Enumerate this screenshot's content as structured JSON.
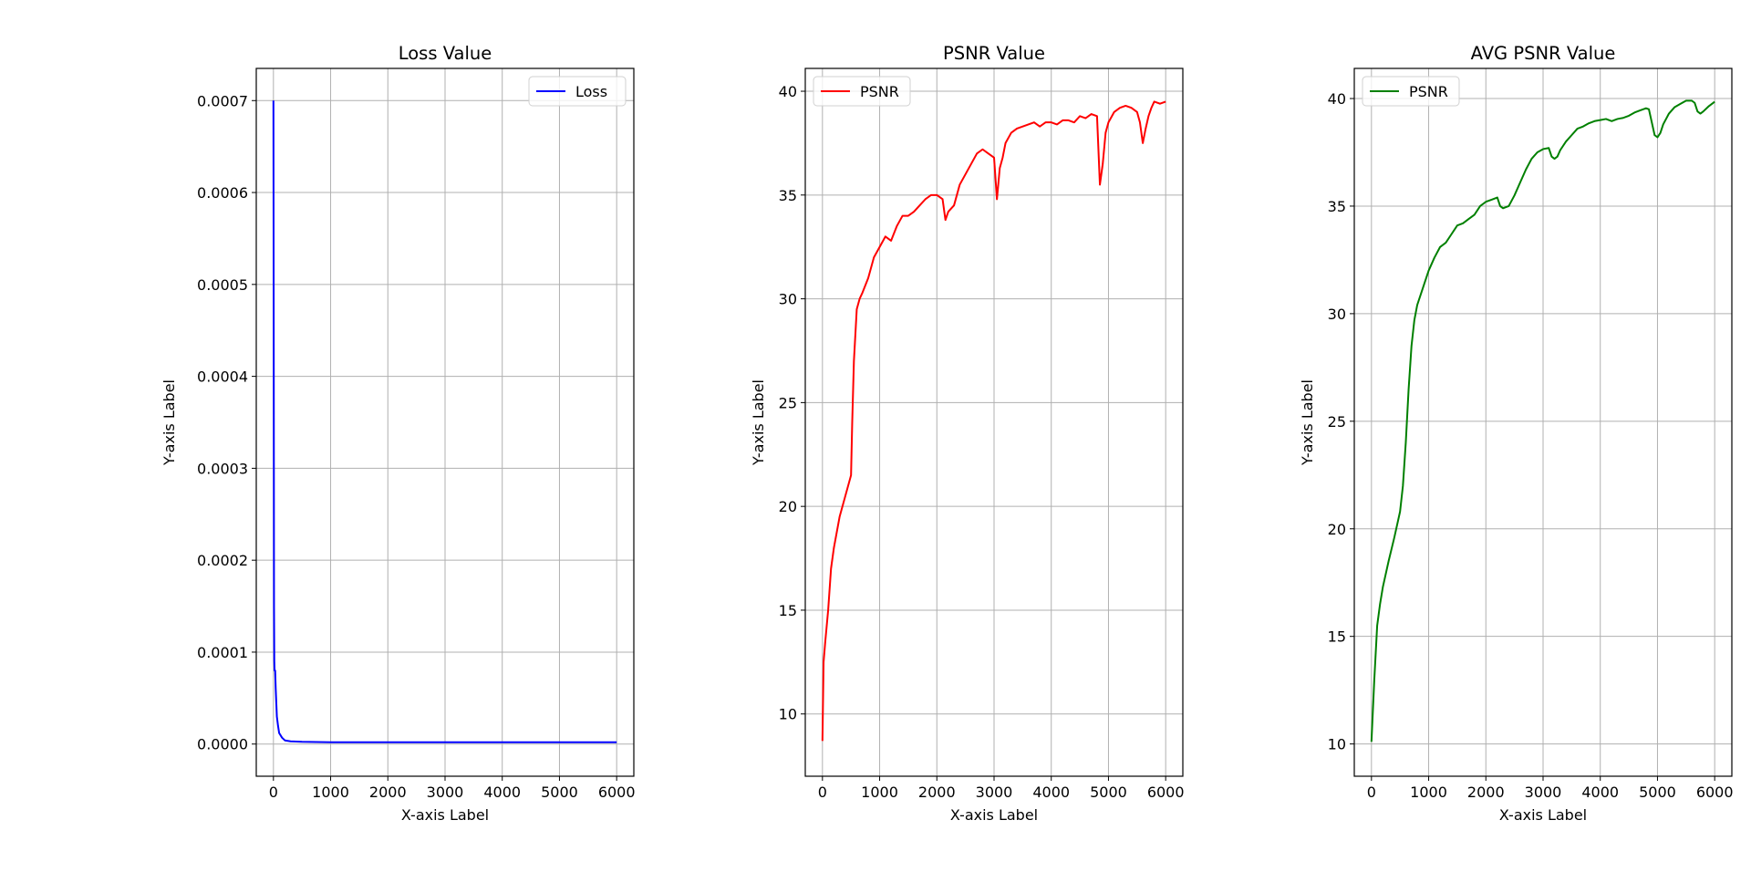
{
  "chart_data": [
    {
      "type": "line",
      "title": "Loss Value",
      "xlabel": "X-axis Label",
      "ylabel": "Y-axis Label",
      "xlim": [
        -300,
        6300
      ],
      "ylim": [
        -3.5e-05,
        0.000735
      ],
      "xticks": [
        0,
        1000,
        2000,
        3000,
        4000,
        5000,
        6000
      ],
      "xtick_labels": [
        "0",
        "1000",
        "2000",
        "3000",
        "4000",
        "5000",
        "6000"
      ],
      "yticks": [
        0,
        0.0001,
        0.0002,
        0.0003,
        0.0004,
        0.0005,
        0.0006,
        0.0007
      ],
      "ytick_labels": [
        "0.0000",
        "0.0001",
        "0.0002",
        "0.0003",
        "0.0004",
        "0.0005",
        "0.0006",
        "0.0007"
      ],
      "grid": true,
      "legend_position": "top-right",
      "series": [
        {
          "name": "Loss",
          "color": "#0000ff",
          "x": [
            0,
            5,
            10,
            15,
            20,
            30,
            40,
            60,
            80,
            100,
            150,
            200,
            300,
            500,
            1000,
            2000,
            3000,
            4000,
            5000,
            6000
          ],
          "y": [
            0.0007,
            0.00045,
            0.00015,
            9e-05,
            8e-05,
            8e-05,
            6e-05,
            3e-05,
            2e-05,
            1.2e-05,
            7e-06,
            4e-06,
            3e-06,
            2.5e-06,
            2e-06,
            2e-06,
            2e-06,
            2e-06,
            2e-06,
            2e-06
          ]
        }
      ]
    },
    {
      "type": "line",
      "title": "PSNR Value",
      "xlabel": "X-axis Label",
      "ylabel": "Y-axis Label",
      "xlim": [
        -300,
        6300
      ],
      "ylim": [
        7,
        41.1
      ],
      "xticks": [
        0,
        1000,
        2000,
        3000,
        4000,
        5000,
        6000
      ],
      "xtick_labels": [
        "0",
        "1000",
        "2000",
        "3000",
        "4000",
        "5000",
        "6000"
      ],
      "yticks": [
        10,
        15,
        20,
        25,
        30,
        35,
        40
      ],
      "ytick_labels": [
        "10",
        "15",
        "20",
        "25",
        "30",
        "35",
        "40"
      ],
      "grid": true,
      "legend_position": "top-left",
      "series": [
        {
          "name": "PSNR",
          "color": "#ff0000",
          "x": [
            0,
            20,
            50,
            100,
            150,
            200,
            300,
            400,
            450,
            500,
            520,
            550,
            580,
            600,
            650,
            700,
            800,
            900,
            1000,
            1100,
            1200,
            1300,
            1400,
            1500,
            1600,
            1700,
            1800,
            1900,
            2000,
            2100,
            2150,
            2200,
            2300,
            2400,
            2500,
            2600,
            2700,
            2800,
            2900,
            3000,
            3050,
            3100,
            3150,
            3200,
            3300,
            3400,
            3500,
            3600,
            3700,
            3800,
            3900,
            4000,
            4100,
            4200,
            4300,
            4400,
            4500,
            4600,
            4700,
            4800,
            4850,
            4900,
            4950,
            5000,
            5100,
            5200,
            5300,
            5400,
            5500,
            5550,
            5600,
            5650,
            5700,
            5750,
            5800,
            5900,
            6000
          ],
          "y": [
            8.7,
            12.5,
            13.5,
            15,
            17,
            18,
            19.5,
            20.5,
            21,
            21.5,
            24,
            27,
            28.5,
            29.5,
            30,
            30.3,
            31,
            32,
            32.5,
            33,
            32.8,
            33.5,
            34,
            34,
            34.2,
            34.5,
            34.8,
            35,
            35,
            34.8,
            33.8,
            34.2,
            34.5,
            35.5,
            36,
            36.5,
            37,
            37.2,
            37,
            36.8,
            34.8,
            36.3,
            36.8,
            37.5,
            38,
            38.2,
            38.3,
            38.4,
            38.5,
            38.3,
            38.5,
            38.5,
            38.4,
            38.6,
            38.6,
            38.5,
            38.8,
            38.7,
            38.9,
            38.8,
            35.5,
            36.5,
            38,
            38.5,
            39,
            39.2,
            39.3,
            39.2,
            39,
            38.5,
            37.5,
            38.2,
            38.8,
            39.2,
            39.5,
            39.4,
            39.5
          ]
        }
      ]
    },
    {
      "type": "line",
      "title": "AVG PSNR Value",
      "xlabel": "X-axis Label",
      "ylabel": "Y-axis Label",
      "xlim": [
        -300,
        6300
      ],
      "ylim": [
        8.5,
        41.4
      ],
      "xticks": [
        0,
        1000,
        2000,
        3000,
        4000,
        5000,
        6000
      ],
      "xtick_labels": [
        "0",
        "1000",
        "2000",
        "3000",
        "4000",
        "5000",
        "6000"
      ],
      "yticks": [
        10,
        15,
        20,
        25,
        30,
        35,
        40
      ],
      "ytick_labels": [
        "10",
        "15",
        "20",
        "25",
        "30",
        "35",
        "40"
      ],
      "grid": true,
      "legend_position": "top-left",
      "series": [
        {
          "name": "PSNR",
          "color": "#008000",
          "x": [
            0,
            50,
            100,
            150,
            200,
            300,
            400,
            500,
            550,
            600,
            650,
            700,
            750,
            800,
            900,
            1000,
            1100,
            1200,
            1300,
            1400,
            1500,
            1600,
            1700,
            1800,
            1900,
            2000,
            2100,
            2200,
            2250,
            2300,
            2400,
            2500,
            2600,
            2700,
            2800,
            2900,
            3000,
            3100,
            3150,
            3200,
            3250,
            3300,
            3400,
            3500,
            3600,
            3700,
            3800,
            3900,
            4000,
            4100,
            4200,
            4300,
            4400,
            4500,
            4600,
            4700,
            4800,
            4850,
            4900,
            4950,
            5000,
            5050,
            5100,
            5200,
            5300,
            5400,
            5500,
            5600,
            5650,
            5700,
            5750,
            5800,
            5900,
            6000
          ],
          "y": [
            10.1,
            13,
            15.5,
            16.5,
            17.3,
            18.5,
            19.6,
            20.8,
            22,
            24,
            26.5,
            28.5,
            29.7,
            30.4,
            31.2,
            32,
            32.6,
            33.1,
            33.3,
            33.7,
            34.1,
            34.2,
            34.4,
            34.6,
            35.0,
            35.2,
            35.3,
            35.4,
            35.0,
            34.9,
            35.0,
            35.5,
            36.1,
            36.7,
            37.2,
            37.5,
            37.65,
            37.7,
            37.3,
            37.2,
            37.3,
            37.6,
            38.0,
            38.3,
            38.6,
            38.7,
            38.85,
            38.95,
            39.0,
            39.05,
            38.95,
            39.05,
            39.1,
            39.2,
            39.35,
            39.45,
            39.55,
            39.5,
            38.9,
            38.3,
            38.2,
            38.4,
            38.8,
            39.3,
            39.6,
            39.75,
            39.9,
            39.9,
            39.8,
            39.4,
            39.3,
            39.4,
            39.65,
            39.85
          ]
        }
      ]
    }
  ]
}
